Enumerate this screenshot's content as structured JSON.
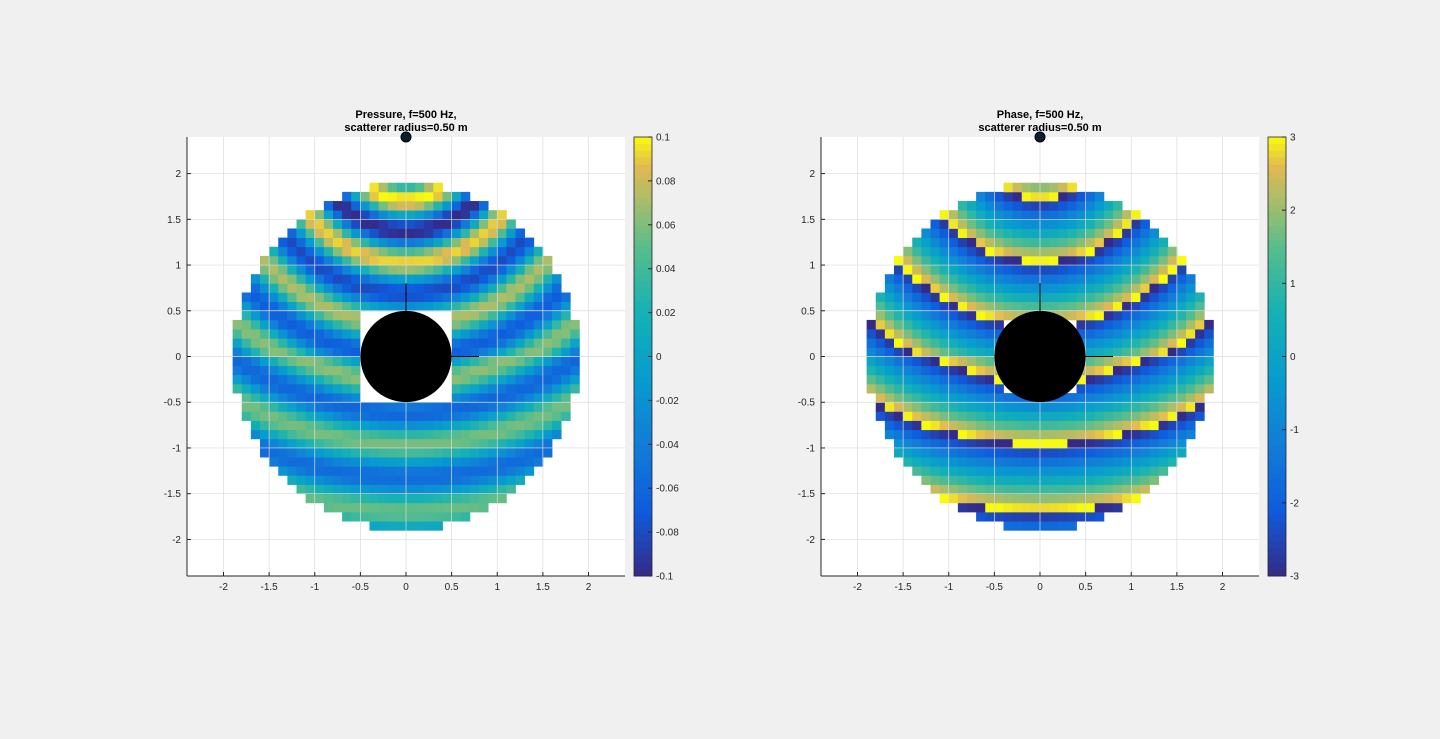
{
  "chart_data": [
    {
      "type": "heatmap",
      "title_lines": [
        "Pressure, f=500 Hz,",
        "scatterer radius=0.50 m"
      ],
      "xlabel": "",
      "ylabel": "",
      "xlim": [
        -2.4,
        2.4
      ],
      "ylim": [
        -2.4,
        2.4
      ],
      "xticks": [
        -2,
        -1.5,
        -1,
        -0.5,
        0,
        0.5,
        1,
        1.5,
        2
      ],
      "xtick_labels": [
        "-2",
        "-1.5",
        "-1",
        "-0.5",
        "0",
        "0.5",
        "1",
        "1.5",
        "2"
      ],
      "yticks": [
        2,
        1.5,
        1,
        0.5,
        0,
        -0.5,
        -1,
        -1.5,
        -2
      ],
      "ytick_labels": [
        "2",
        "1.5",
        "1",
        "0.5",
        "0",
        "-0.5",
        "-1",
        "-1.5",
        "-2"
      ],
      "grid": true,
      "colormap": "parula",
      "colorbar": {
        "limits": [
          -0.1,
          0.1
        ],
        "ticks": [
          0.1,
          0.08,
          0.06,
          0.04,
          0.02,
          0,
          -0.02,
          -0.04,
          -0.06,
          -0.08,
          -0.1
        ],
        "tick_labels": [
          "0.1",
          "0.08",
          "0.06",
          "0.04",
          "0.02",
          "0",
          "-0.02",
          "-0.04",
          "-0.06",
          "-0.08",
          "-0.1"
        ]
      },
      "field": {
        "domain_radius": 1.9,
        "grid_step": 0.1,
        "quantity": "pressure",
        "wavenumber": 9.16,
        "amplitude": 0.1
      },
      "scatterer": {
        "center": [
          0,
          0
        ],
        "radius": 0.5,
        "hole_halfwidth": 0.5,
        "color": "#000000"
      },
      "source": {
        "x": 0,
        "y": 2.4
      },
      "axes_lines": {
        "vertical": [
          [
            0,
            0
          ],
          [
            0,
            0.8
          ]
        ],
        "horizontal": [
          [
            0,
            0
          ],
          [
            0.8,
            0
          ]
        ]
      }
    },
    {
      "type": "heatmap",
      "title_lines": [
        "Phase, f=500 Hz,",
        "scatterer radius=0.50 m"
      ],
      "xlabel": "",
      "ylabel": "",
      "xlim": [
        -2.4,
        2.4
      ],
      "ylim": [
        -2.4,
        2.4
      ],
      "xticks": [
        -2,
        -1.5,
        -1,
        -0.5,
        0,
        0.5,
        1,
        1.5,
        2
      ],
      "xtick_labels": [
        "-2",
        "-1.5",
        "-1",
        "-0.5",
        "0",
        "0.5",
        "1",
        "1.5",
        "2"
      ],
      "yticks": [
        2,
        1.5,
        1,
        0.5,
        0,
        -0.5,
        -1,
        -1.5,
        -2
      ],
      "ytick_labels": [
        "2",
        "1.5",
        "1",
        "0.5",
        "0",
        "-0.5",
        "-1",
        "-1.5",
        "-2"
      ],
      "grid": true,
      "colormap": "parula",
      "colorbar": {
        "limits": [
          -3,
          3
        ],
        "ticks": [
          3,
          2,
          1,
          0,
          -1,
          -2,
          -3
        ],
        "tick_labels": [
          "3",
          "2",
          "1",
          "0",
          "-1",
          "-2",
          "-3"
        ]
      },
      "field": {
        "domain_radius": 1.9,
        "grid_step": 0.1,
        "quantity": "phase",
        "wavenumber": 9.16,
        "amplitude": 3.14159
      },
      "scatterer": {
        "center": [
          0,
          0
        ],
        "radius": 0.5,
        "hole_halfwidth": 0.4,
        "color": "#000000"
      },
      "source": {
        "x": 0,
        "y": 2.4
      },
      "axes_lines": {
        "vertical": [
          [
            0,
            0
          ],
          [
            0,
            0.8
          ]
        ],
        "horizontal": [
          [
            0,
            0
          ],
          [
            0.8,
            0
          ]
        ]
      }
    }
  ],
  "style": {
    "figure_background": "#f0f0f0",
    "axes_background": "#ffffff",
    "grid_color": "#dcdcdc",
    "axis_color": "#262626",
    "source_marker_fill": "#0b1f33"
  }
}
